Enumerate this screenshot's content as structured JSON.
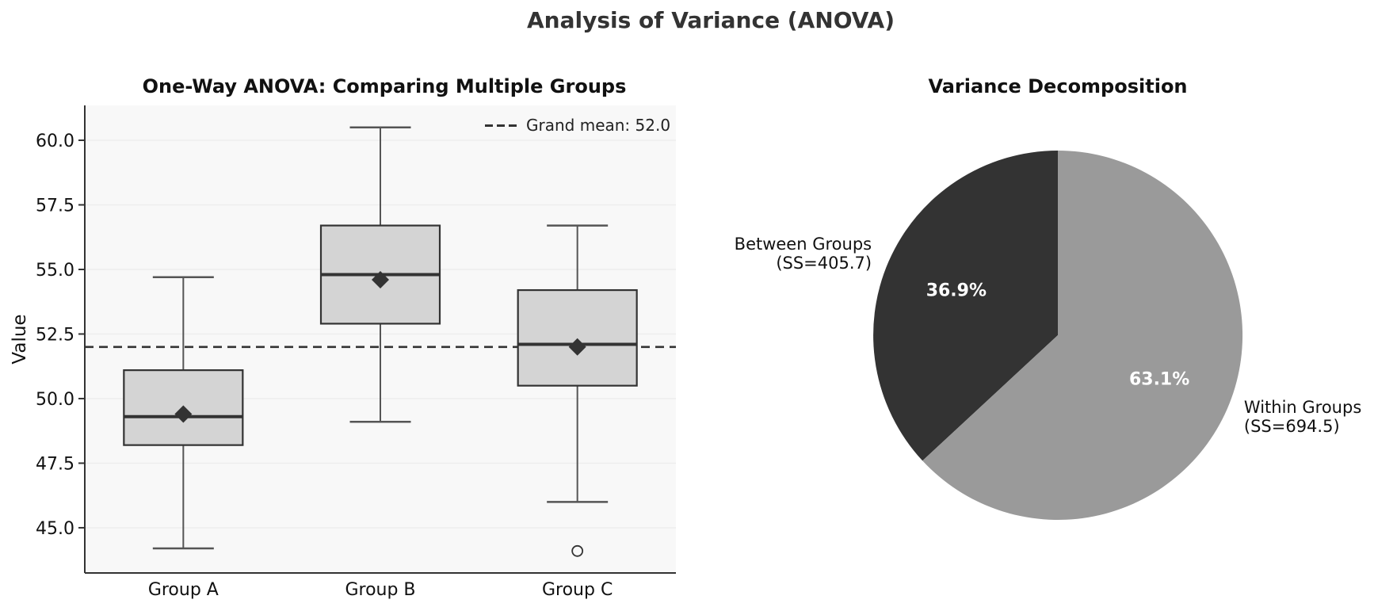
{
  "figure_title": "Analysis of Variance (ANOVA)",
  "colors": {
    "figure_bg": "#ffffff",
    "plot_bg": "#f8f8f8",
    "grid": "#ededed",
    "spine": "#333333",
    "tick_label": "#111111",
    "box_fill": "#d4d4d4",
    "box_edge": "#333333",
    "whisker": "#555555",
    "median": "#333333",
    "mean_marker": "#333333",
    "dashed_line": "#333333",
    "pie_dark": "#333333",
    "pie_light": "#9a9a9a",
    "pct_text": "#ffffff"
  },
  "chart_data": [
    {
      "type": "boxplot",
      "title": "One-Way ANOVA: Comparing Multiple Groups",
      "ylabel": "Value",
      "ylim": [
        43.25,
        61.35
      ],
      "yticks": [
        45.0,
        47.5,
        50.0,
        52.5,
        55.0,
        57.5,
        60.0
      ],
      "grid": true,
      "categories": [
        "Group A",
        "Group B",
        "Group C"
      ],
      "grand_mean": 52.0,
      "legend_label": "Grand mean: 52.0",
      "legend_position": "upper right",
      "groups": [
        {
          "name": "Group A",
          "whisker_low": 44.2,
          "q1": 48.2,
          "median": 49.3,
          "mean": 49.4,
          "q3": 51.1,
          "whisker_high": 54.7,
          "outliers": []
        },
        {
          "name": "Group B",
          "whisker_low": 49.1,
          "q1": 52.9,
          "median": 54.8,
          "mean": 54.6,
          "q3": 56.7,
          "whisker_high": 60.5,
          "outliers": []
        },
        {
          "name": "Group C",
          "whisker_low": 46.0,
          "q1": 50.5,
          "median": 52.1,
          "mean": 52.0,
          "q3": 54.2,
          "whisker_high": 56.7,
          "outliers": [
            44.1
          ]
        }
      ]
    },
    {
      "type": "pie",
      "title": "Variance Decomposition",
      "start_angle": 90,
      "direction": "counterclockwise",
      "slices": [
        {
          "label": "Between Groups",
          "sublabel": "(SS=405.7)",
          "value": 405.7,
          "pct": 36.9,
          "pct_label": "36.9%",
          "color_key": "pie_dark"
        },
        {
          "label": "Within Groups",
          "sublabel": "(SS=694.5)",
          "value": 694.5,
          "pct": 63.1,
          "pct_label": "63.1%",
          "color_key": "pie_light"
        }
      ]
    }
  ]
}
